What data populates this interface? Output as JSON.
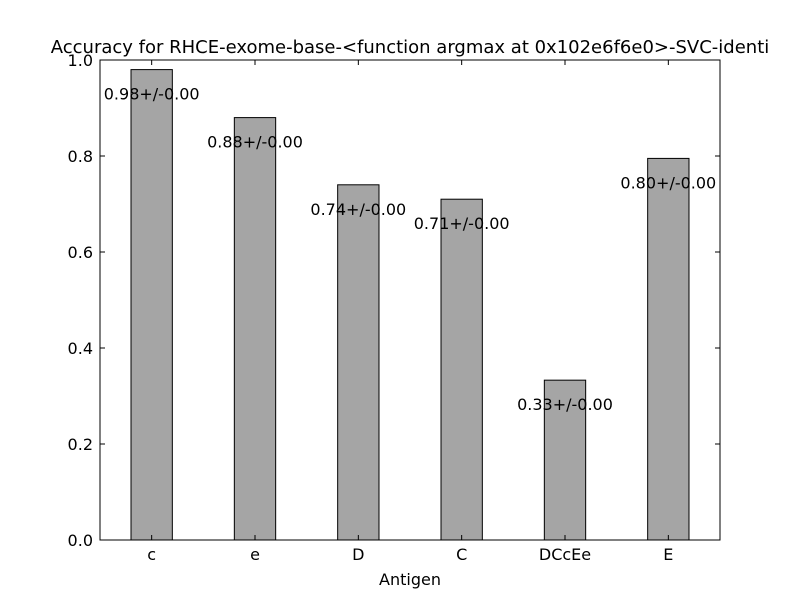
{
  "chart_data": {
    "type": "bar",
    "title": "Accuracy for RHCE-exome-base-<function argmax at 0x102e6f6e0>-SVC-identi",
    "xlabel": "Antigen",
    "ylabel": "",
    "categories": [
      "c",
      "e",
      "D",
      "C",
      "DCcEe",
      "E"
    ],
    "values": [
      0.98,
      0.88,
      0.74,
      0.71,
      0.333,
      0.795
    ],
    "labels": [
      "0.98+/-0.00",
      "0.88+/-0.00",
      "0.74+/-0.00",
      "0.71+/-0.00",
      "0.33+/-0.00",
      "0.80+/-0.00"
    ],
    "ylim": [
      0.0,
      1.0
    ],
    "yticks": [
      "0.0",
      "0.2",
      "0.4",
      "0.6",
      "0.8",
      "1.0"
    ],
    "grid": false,
    "bar_color": "#a5a5a5",
    "edge_color": "#000000"
  }
}
